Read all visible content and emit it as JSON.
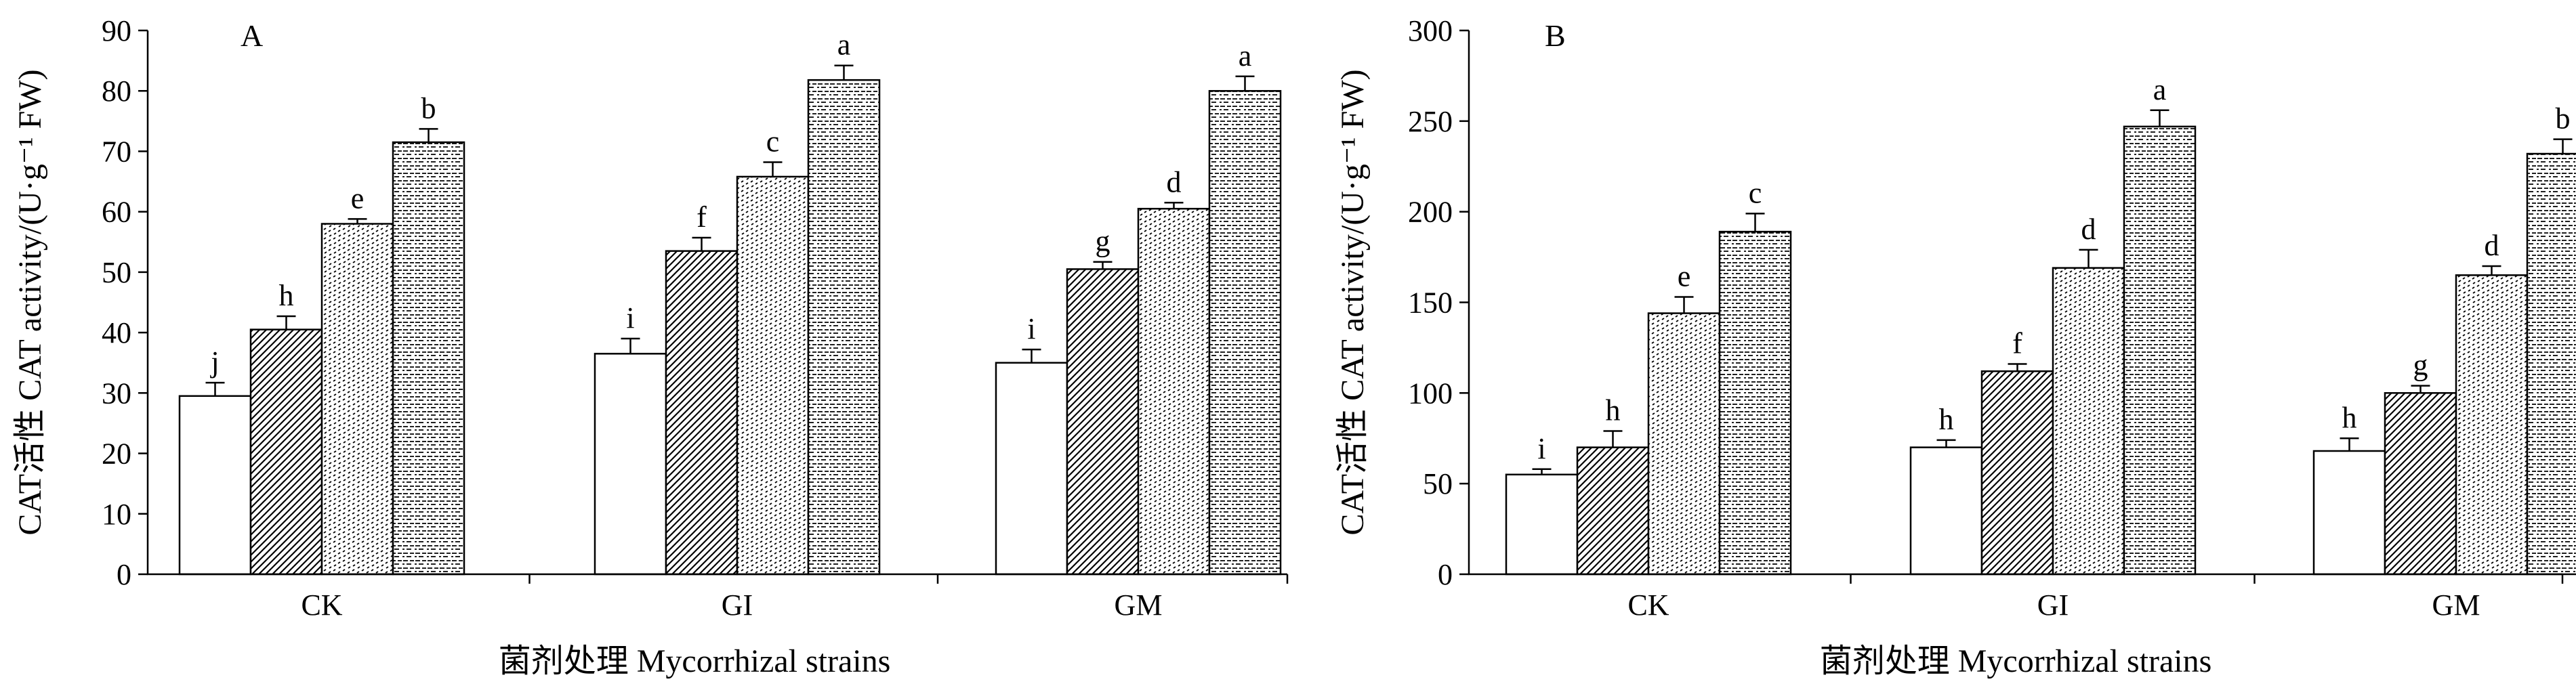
{
  "chart_data": [
    {
      "type": "bar",
      "panel_label": "A",
      "ylabel": "CAT活性 CAT activity/(U·g⁻¹ FW)",
      "xlabel": "菌剂处理 Mycorrhizal strains",
      "categories": [
        "CK",
        "GI",
        "GM"
      ],
      "ylim": [
        0,
        90
      ],
      "yticks": [
        0,
        10,
        20,
        30,
        40,
        50,
        60,
        70,
        80,
        90
      ],
      "grid": false,
      "patterns": [
        "none",
        "diagonal",
        "dotted",
        "dashed"
      ],
      "series": [
        {
          "values": [
            29.5,
            36.5,
            35.0
          ],
          "errors": [
            2.2,
            2.5,
            2.2
          ],
          "labels": [
            "j",
            "i",
            "i"
          ]
        },
        {
          "values": [
            40.5,
            53.5,
            50.5
          ],
          "errors": [
            2.2,
            2.2,
            1.2
          ],
          "labels": [
            "h",
            "f",
            "g"
          ]
        },
        {
          "values": [
            58.0,
            65.8,
            60.5
          ],
          "errors": [
            0.8,
            2.4,
            1.0
          ],
          "labels": [
            "e",
            "c",
            "d"
          ]
        },
        {
          "values": [
            71.5,
            81.8,
            80.0
          ],
          "errors": [
            2.2,
            2.4,
            2.4
          ],
          "labels": [
            "b",
            "a",
            "a"
          ]
        }
      ]
    },
    {
      "type": "bar",
      "panel_label": "B",
      "ylabel": "CAT活性 CAT activity/(U·g⁻¹ FW)",
      "xlabel": "菌剂处理 Mycorrhizal strains",
      "categories": [
        "CK",
        "GI",
        "GM"
      ],
      "ylim": [
        0,
        300
      ],
      "yticks": [
        0,
        50,
        100,
        150,
        200,
        250,
        300
      ],
      "grid": false,
      "patterns": [
        "none",
        "diagonal",
        "dotted",
        "dashed"
      ],
      "series": [
        {
          "values": [
            55,
            70,
            68
          ],
          "errors": [
            3,
            4,
            7
          ],
          "labels": [
            "i",
            "h",
            "h"
          ]
        },
        {
          "values": [
            70,
            112,
            100
          ],
          "errors": [
            9,
            4,
            4
          ],
          "labels": [
            "h",
            "f",
            "g"
          ]
        },
        {
          "values": [
            144,
            169,
            165
          ],
          "errors": [
            9,
            10,
            5
          ],
          "labels": [
            "e",
            "d",
            "d"
          ]
        },
        {
          "values": [
            189,
            247,
            232
          ],
          "errors": [
            10,
            9,
            8
          ],
          "labels": [
            "c",
            "a",
            "b"
          ]
        }
      ]
    }
  ]
}
